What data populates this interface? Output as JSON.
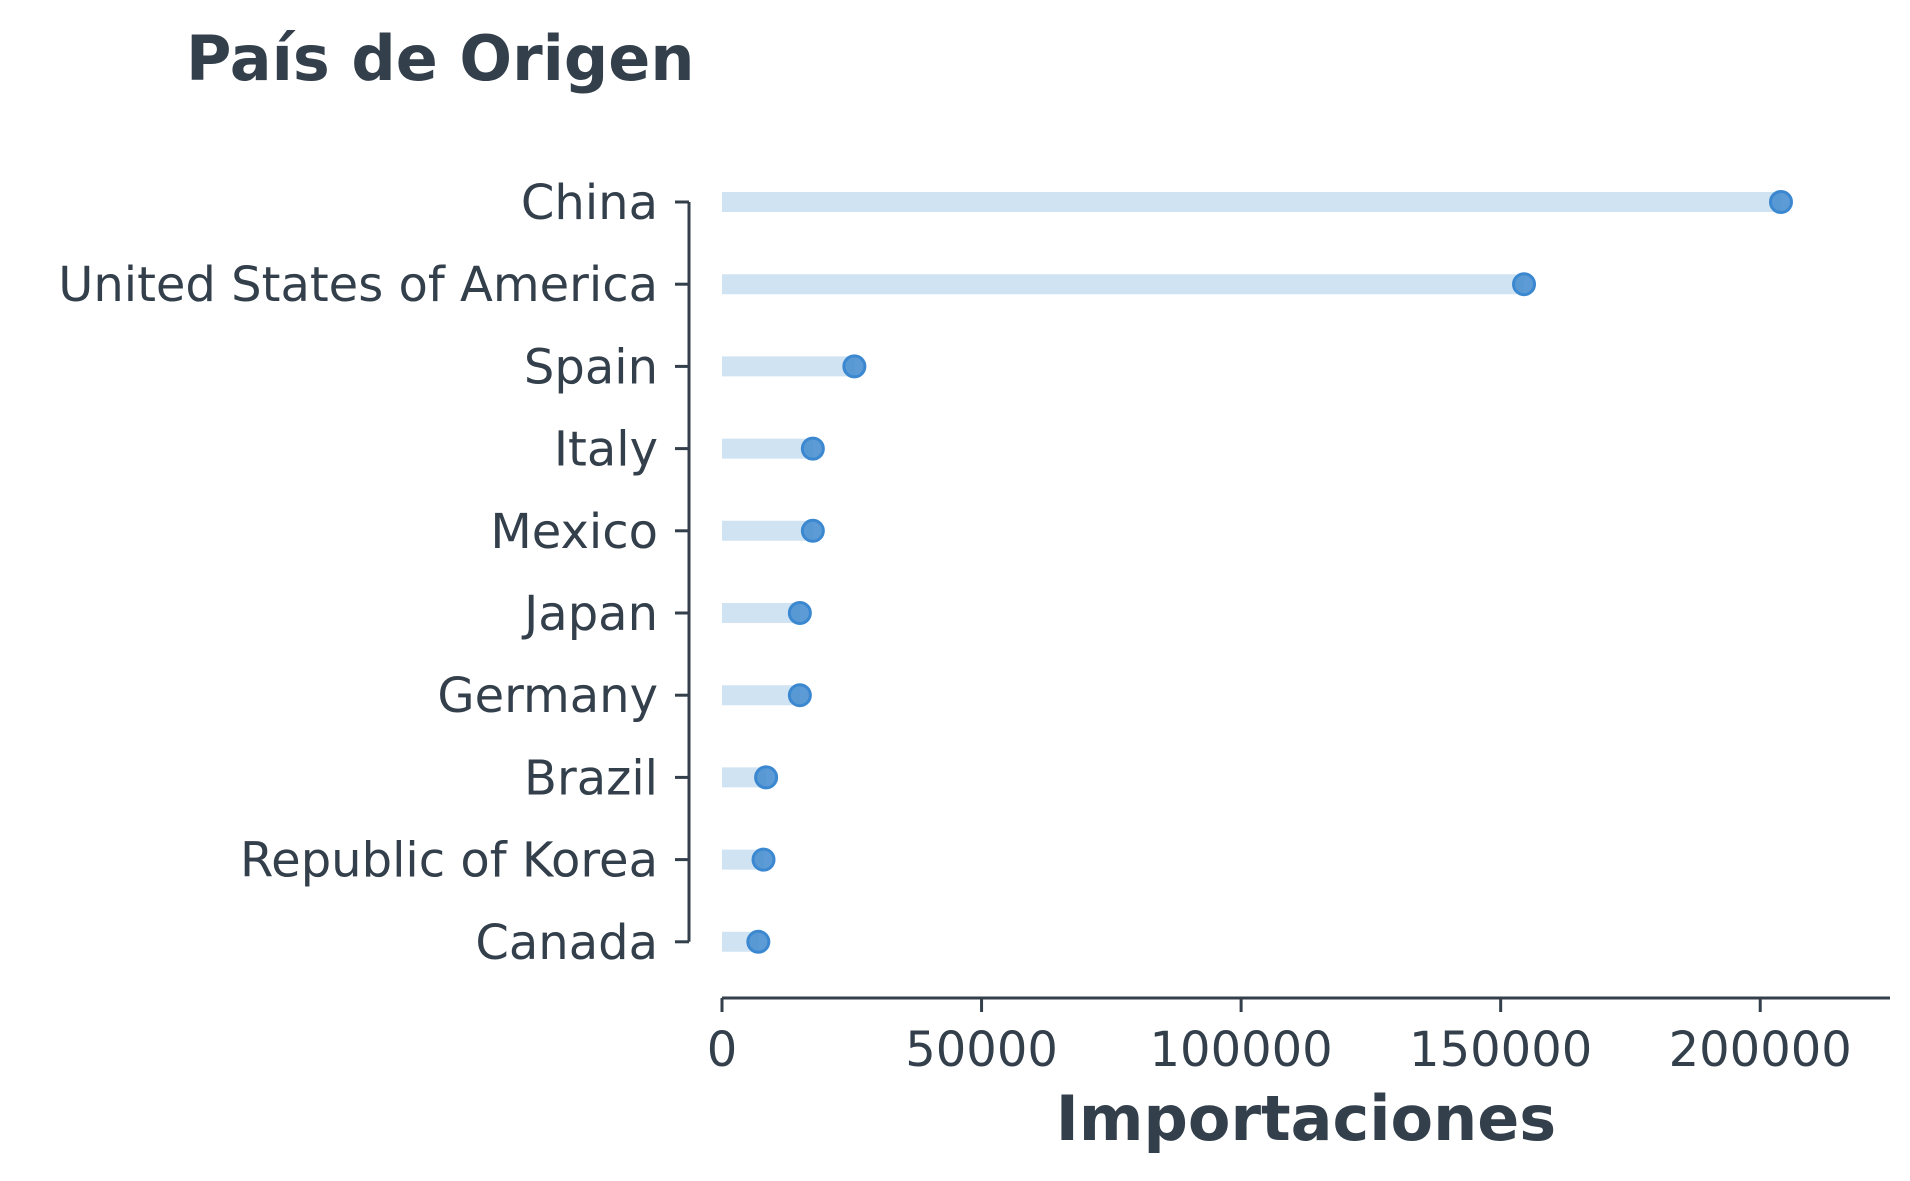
{
  "chart_data": {
    "type": "lollipop",
    "orientation": "horizontal",
    "title": "País de Origen",
    "xlabel": "Importaciones",
    "ylabel": "",
    "categories": [
      "China",
      "United States of America",
      "Spain",
      "Italy",
      "Mexico",
      "Japan",
      "Germany",
      "Brazil",
      "Republic of Korea",
      "Canada"
    ],
    "values": [
      204000,
      154500,
      25500,
      17500,
      17500,
      15000,
      15000,
      8500,
      8000,
      7000
    ],
    "xlim": [
      0,
      225000
    ],
    "xticks": [
      0,
      50000,
      100000,
      150000,
      200000
    ],
    "xtick_labels": [
      "0",
      "50000",
      "100000",
      "150000",
      "200000"
    ],
    "grid": false,
    "legend": "none",
    "colors": {
      "text": "#333f4b",
      "stem": "#cfe3f2",
      "point_fill": "#4a90d0",
      "point_edge": "#3b88d1",
      "axis": "#333f4b"
    }
  }
}
